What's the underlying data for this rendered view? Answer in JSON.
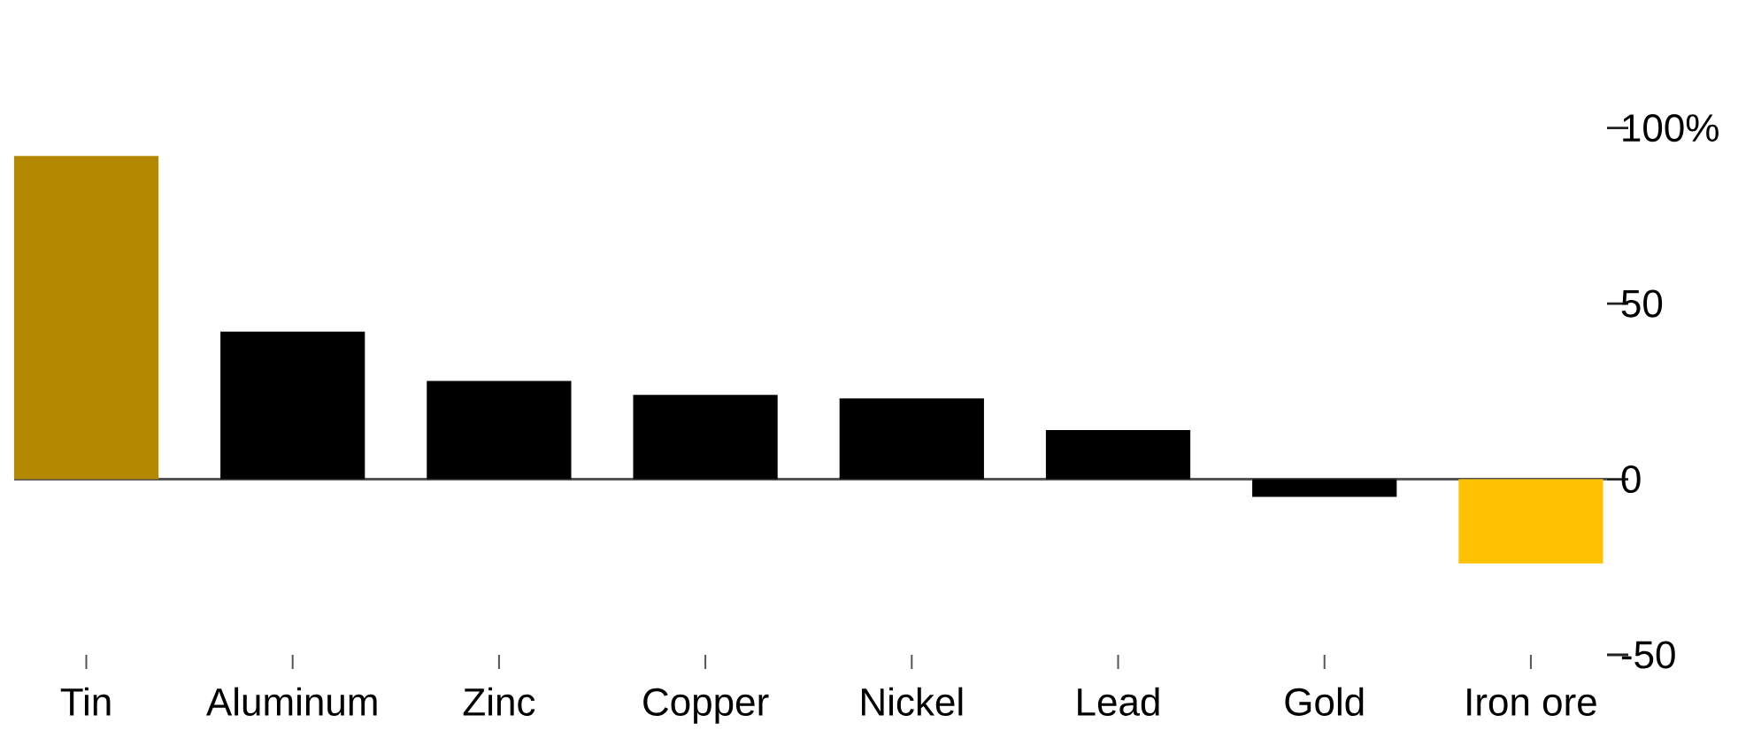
{
  "chart_data": {
    "type": "bar",
    "categories": [
      "Tin",
      "Aluminum",
      "Zinc",
      "Copper",
      "Nickel",
      "Lead",
      "Gold",
      "Iron ore"
    ],
    "values": [
      92,
      42,
      28,
      24,
      23,
      14,
      -5,
      -24
    ],
    "colors": [
      "#b48800",
      "#000000",
      "#000000",
      "#000000",
      "#000000",
      "#000000",
      "#000000",
      "#ffc200"
    ],
    "ylim": [
      -50,
      100
    ],
    "yticks": [
      {
        "value": 100,
        "label": "100%"
      },
      50,
      0,
      -50
    ]
  }
}
